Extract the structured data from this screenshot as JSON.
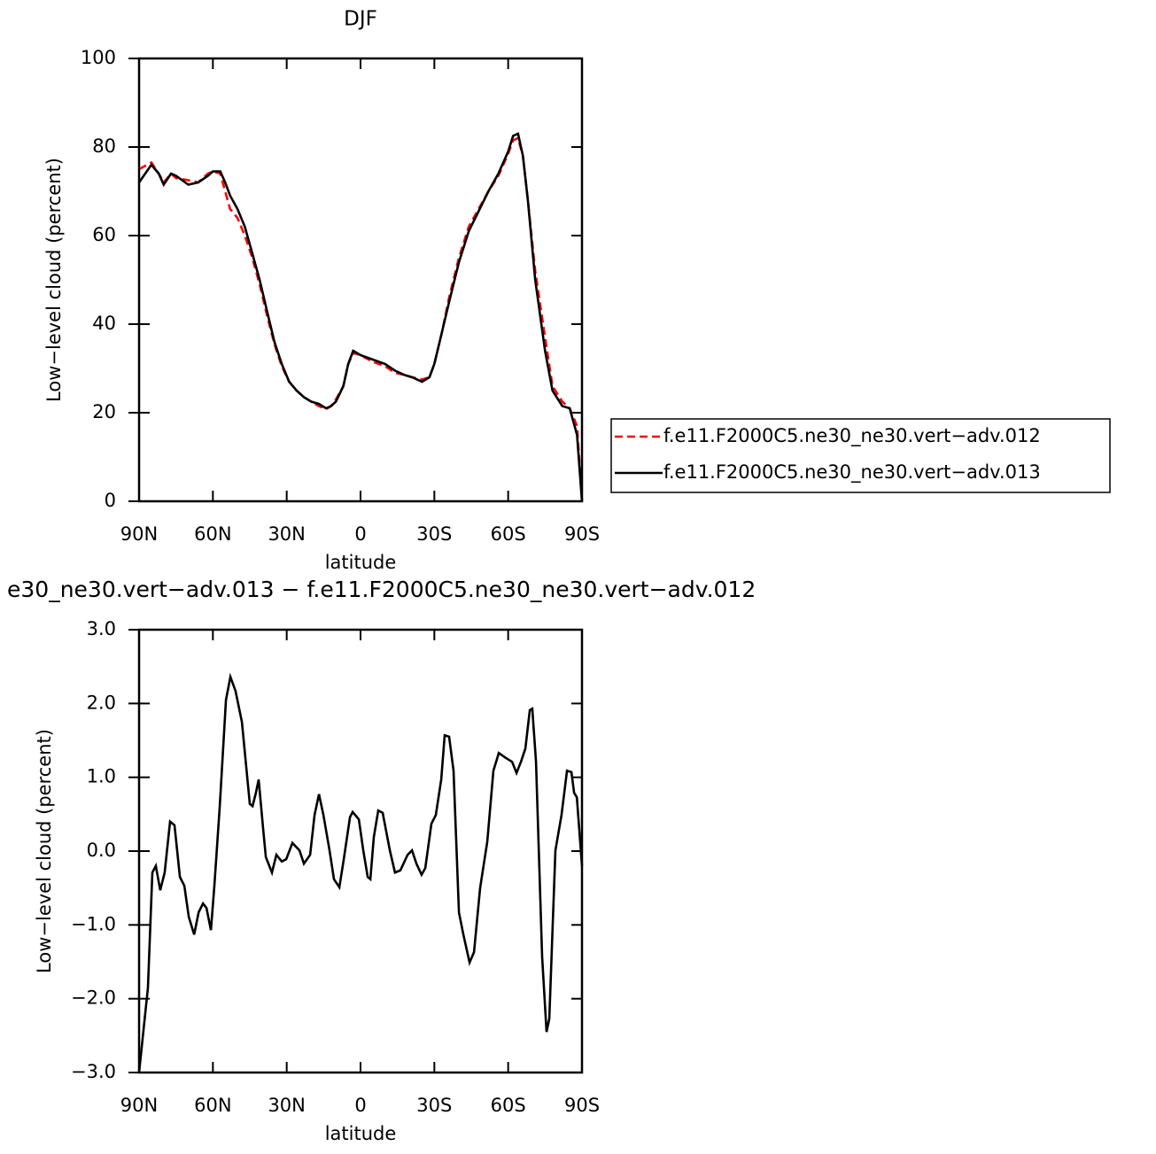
{
  "chart_data": [
    {
      "type": "line",
      "title": "DJF",
      "xlabel": "latitude",
      "ylabel": "Low−level cloud (percent)",
      "x": [
        90,
        85,
        82,
        80,
        77,
        75,
        70,
        66,
        62,
        60,
        57,
        55,
        53,
        50,
        47,
        44,
        41,
        38,
        35,
        32,
        29,
        26,
        23,
        20,
        17,
        14,
        12,
        10,
        7,
        5,
        3,
        0,
        -5,
        -10,
        -14,
        -18,
        -21,
        -25,
        -28,
        -30,
        -33,
        -36,
        -40,
        -44,
        -48,
        -52,
        -56,
        -60,
        -62,
        -64,
        -66,
        -68,
        -71,
        -75,
        -78,
        -82,
        -85,
        -88,
        -90
      ],
      "series": [
        {
          "name": "f.e11.F2000C5.ne30_ne30.vert−adv.012",
          "color": "#ff0000",
          "style": "dashed",
          "values": [
            75,
            76.5,
            74,
            72,
            74,
            73,
            72.5,
            72,
            74,
            74.5,
            74,
            70,
            66,
            64,
            60,
            55,
            49,
            42,
            35.5,
            30.5,
            27,
            25,
            23.5,
            22.5,
            21.5,
            20.8,
            21.5,
            23,
            26,
            31,
            33.5,
            33,
            31.5,
            30.5,
            29,
            28.5,
            28,
            27.5,
            28,
            31,
            38,
            46,
            55,
            62,
            66,
            70,
            73.5,
            78.5,
            81.5,
            82,
            78,
            68,
            52,
            37,
            26,
            22.5,
            21,
            17,
            0
          ]
        },
        {
          "name": "f.e11.F2000C5.ne30_ne30.vert−adv.013",
          "color": "#000000",
          "style": "solid",
          "values": [
            72,
            76,
            74,
            71.5,
            74,
            73.5,
            71.5,
            72,
            73.5,
            74.5,
            74.5,
            72,
            69,
            66,
            62,
            56,
            50,
            43,
            36,
            31,
            27,
            25,
            23.5,
            22.5,
            22,
            21,
            21.5,
            22.5,
            26,
            31,
            34,
            33,
            32,
            31,
            29.5,
            28.5,
            28,
            27,
            28,
            31,
            38,
            45,
            54,
            61,
            65.5,
            70,
            74,
            79,
            82.5,
            83,
            78,
            68,
            50,
            34,
            25,
            21.5,
            21,
            15,
            0
          ]
        }
      ],
      "xlim": [
        90,
        -90
      ],
      "xticks": [
        {
          "value": 90,
          "label": "90N"
        },
        {
          "value": 60,
          "label": "60N"
        },
        {
          "value": 30,
          "label": "30N"
        },
        0,
        {
          "value": -30,
          "label": "30S"
        },
        {
          "value": -60,
          "label": "60S"
        },
        {
          "value": -90,
          "label": "90S"
        }
      ],
      "ylim": [
        0,
        100
      ],
      "yticks": [
        0,
        20,
        40,
        60,
        80,
        100
      ],
      "legend": "right"
    },
    {
      "type": "line",
      "title": "e30_ne30.vert−adv.013 − f.e11.F2000C5.ne30_ne30.vert−adv.012",
      "xlabel": "latitude",
      "ylabel": "Low−level cloud (percent)",
      "x": [
        90,
        86.4,
        84.6,
        83.2,
        81.4,
        79.6,
        77.4,
        75.6,
        73.4,
        71.6,
        69.8,
        67.6,
        65.8,
        64,
        62.6,
        60.8,
        59.4,
        57.2,
        54.7,
        52.9,
        50.8,
        48.2,
        45,
        43.9,
        42.5,
        41.4,
        39.6,
        38.5,
        36,
        34.2,
        32,
        30.2,
        27.7,
        24.8,
        23,
        20.5,
        18.7,
        16.9,
        15.1,
        12.6,
        10.8,
        8.6,
        6.8,
        4.3,
        3.2,
        0.7,
        -1.1,
        -2.9,
        -4,
        -5.4,
        -7.2,
        -9,
        -11.9,
        -14,
        -16.2,
        -19.1,
        -20.9,
        -22.7,
        -24.8,
        -26.3,
        -28.8,
        -30.6,
        -32.8,
        -34.2,
        -36,
        -37.8,
        -40,
        -41.8,
        -44.3,
        -46.1,
        -48.6,
        -51.5,
        -54,
        -56.2,
        -58.7,
        -61.6,
        -63.4,
        -65.2,
        -67,
        -68.8,
        -69.8,
        -71.3,
        -73.8,
        -75.6,
        -76.7,
        -79.2,
        -81.7,
        -83.9,
        -85.7,
        -86.8,
        -87.9,
        -90
      ],
      "series": [
        {
          "color": "#000000",
          "style": "solid",
          "values": [
            -3.0,
            -1.85,
            -0.29,
            -0.2,
            -0.53,
            -0.29,
            0.4,
            0.35,
            -0.35,
            -0.47,
            -0.89,
            -1.13,
            -0.83,
            -0.71,
            -0.77,
            -1.07,
            -0.47,
            0.61,
            2.05,
            2.36,
            2.17,
            1.75,
            0.64,
            0.61,
            0.79,
            0.97,
            0.31,
            -0.08,
            -0.29,
            -0.05,
            -0.14,
            -0.11,
            0.11,
            0.01,
            -0.17,
            -0.05,
            0.49,
            0.77,
            0.49,
            0.01,
            -0.38,
            -0.49,
            -0.11,
            0.46,
            0.53,
            0.43,
            0.01,
            -0.35,
            -0.38,
            0.19,
            0.55,
            0.52,
            0.01,
            -0.29,
            -0.26,
            -0.05,
            0.01,
            -0.17,
            -0.32,
            -0.23,
            0.37,
            0.49,
            0.97,
            1.57,
            1.55,
            1.09,
            -0.83,
            -1.13,
            -1.51,
            -1.37,
            -0.5,
            0.13,
            1.09,
            1.33,
            1.27,
            1.21,
            1.06,
            1.21,
            1.39,
            1.91,
            1.93,
            1.21,
            -1.43,
            -2.45,
            -2.27,
            0.01,
            0.49,
            1.09,
            1.07,
            0.79,
            0.73,
            -0.2
          ]
        }
      ],
      "xlim": [
        90,
        -90
      ],
      "xticks": [
        {
          "value": 90,
          "label": "90N"
        },
        {
          "value": 60,
          "label": "60N"
        },
        {
          "value": 30,
          "label": "30N"
        },
        0,
        {
          "value": -30,
          "label": "30S"
        },
        {
          "value": -60,
          "label": "60S"
        },
        {
          "value": -90,
          "label": "90S"
        }
      ],
      "ylim": [
        -3,
        3
      ],
      "yticks": [
        {
          "value": -3,
          "label": "−3.0"
        },
        {
          "value": -2,
          "label": "−2.0"
        },
        {
          "value": -1,
          "label": "−1.0"
        },
        {
          "value": 0,
          "label": "0.0"
        },
        {
          "value": 1,
          "label": "1.0"
        },
        {
          "value": 2,
          "label": "2.0"
        },
        {
          "value": 3,
          "label": "3.0"
        }
      ]
    }
  ]
}
